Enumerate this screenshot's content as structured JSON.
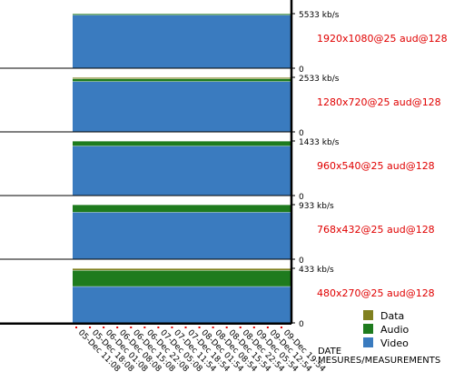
{
  "chart_data": {
    "type": "area",
    "stacking": "stacked",
    "xlabel": "DATE",
    "xlabel_secondary": "MESURES/MEASUREMENTS",
    "categories": [
      "05-Dec 11:08",
      "05-Dec 18:08",
      "06-Dec 01:08",
      "06-Dec 08:08",
      "06-Dec 15:08",
      "06-Dec 22:08",
      "07-Dec 05:08",
      "07-Dec 11:54",
      "07-Dec 18:54",
      "08-Dec 01:54",
      "08-Dec 08:54",
      "08-Dec 15:54",
      "08-Dec 22:54",
      "09-Dec 05:54",
      "09-Dec 12:54",
      "09-Dec 19:54"
    ],
    "legend": [
      {
        "name": "Data",
        "color": "#808020"
      },
      {
        "name": "Audio",
        "color": "#1e7b1e"
      },
      {
        "name": "Video",
        "color": "#3a7bbf"
      }
    ],
    "legend_position": "bottom-right",
    "panels": [
      {
        "profile": "1920x1080@25 aud@128",
        "ymax_label": "5533 kb/s",
        "zero_label": "0",
        "ymax": 5533,
        "stack": [
          {
            "name": "Video",
            "value": 5405
          },
          {
            "name": "Audio",
            "value": 128
          },
          {
            "name": "Data",
            "value": 0
          }
        ]
      },
      {
        "profile": "1280x720@25 aud@128",
        "ymax_label": "2533 kb/s",
        "zero_label": "0",
        "ymax": 2533,
        "stack": [
          {
            "name": "Video",
            "value": 2345
          },
          {
            "name": "Audio",
            "value": 128
          },
          {
            "name": "Data",
            "value": 60
          }
        ]
      },
      {
        "profile": "960x540@25 aud@128",
        "ymax_label": "1433 kb/s",
        "zero_label": "0",
        "ymax": 1433,
        "stack": [
          {
            "name": "Video",
            "value": 1305
          },
          {
            "name": "Audio",
            "value": 128
          },
          {
            "name": "Data",
            "value": 0
          }
        ]
      },
      {
        "profile": "768x432@25 aud@128",
        "ymax_label": "933 kb/s",
        "zero_label": "0",
        "ymax": 933,
        "stack": [
          {
            "name": "Video",
            "value": 805
          },
          {
            "name": "Audio",
            "value": 128
          },
          {
            "name": "Data",
            "value": 0
          }
        ]
      },
      {
        "profile": "480x270@25 aud@128",
        "ymax_label": "433 kb/s",
        "zero_label": "0",
        "ymax": 433,
        "stack": [
          {
            "name": "Video",
            "value": 290
          },
          {
            "name": "Audio",
            "value": 128
          },
          {
            "name": "Data",
            "value": 15
          }
        ]
      }
    ]
  }
}
